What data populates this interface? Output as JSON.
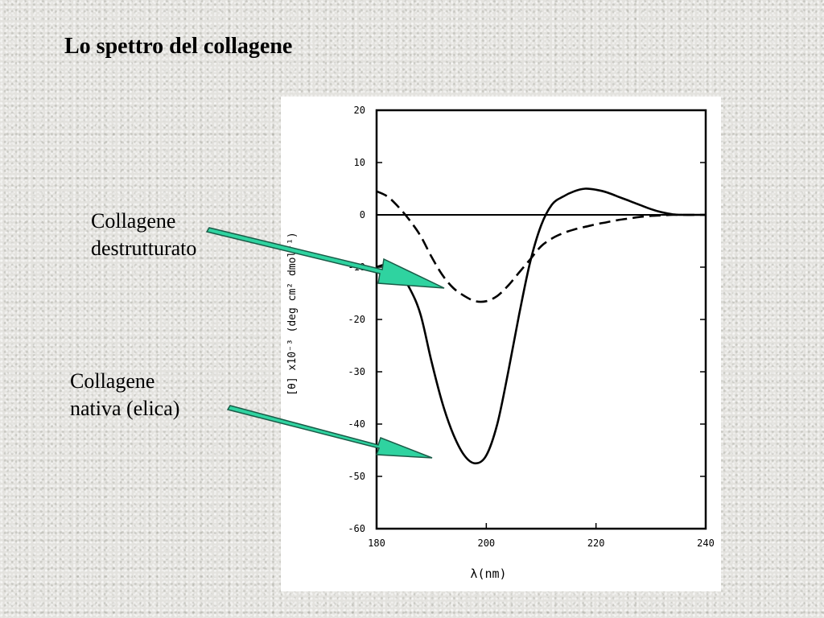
{
  "slide": {
    "title": "Lo spettro del collagene"
  },
  "callouts": {
    "destrutturato_line1": "Collagene",
    "destrutturato_line2": "destrutturato",
    "nativa_line1": "Collagene",
    "nativa_line2": "nativa (elica)"
  },
  "colors": {
    "arrow_fill": "#2fd3a0",
    "arrow_stroke": "#1a5c48",
    "chart_ink": "#000000",
    "panel": "#ffffff"
  },
  "chart_data": {
    "type": "line",
    "xlabel": "λ(nm)",
    "ylabel": "[θ] x10⁻³ (deg cm² dmol⁻¹)",
    "xlim": [
      180,
      240
    ],
    "ylim": [
      -60,
      20
    ],
    "x_ticks": [
      180,
      200,
      220,
      240
    ],
    "x_tick_labels": [
      "180",
      "200",
      "220",
      "240"
    ],
    "y_ticks": [
      20,
      10,
      0,
      -10,
      -20,
      -30,
      -40,
      -50,
      -60
    ],
    "y_tick_labels": [
      "20",
      "10",
      "0",
      "-10",
      "-20",
      "-30",
      "-40",
      "-50",
      "-60"
    ],
    "zero_line": true,
    "grid": false,
    "series": [
      {
        "style": "solid",
        "x": [
          180,
          182,
          184,
          186,
          188,
          190,
          192,
          194,
          196,
          198,
          200,
          202,
          204,
          206,
          208,
          210,
          212,
          214,
          216,
          218,
          220,
          222,
          224,
          226,
          228,
          230,
          232,
          234,
          236,
          238,
          240
        ],
        "y": [
          -10,
          -9.5,
          -11,
          -14,
          -19,
          -28,
          -36,
          -42,
          -46,
          -47.5,
          -46,
          -40,
          -30,
          -19,
          -9,
          -2,
          2,
          3.5,
          4.5,
          5,
          4.8,
          4.3,
          3.5,
          2.7,
          1.9,
          1.1,
          0.5,
          0.1,
          0,
          0,
          0
        ]
      },
      {
        "style": "dashed",
        "x": [
          180,
          182,
          184,
          186,
          188,
          190,
          192,
          194,
          196,
          198,
          200,
          202,
          204,
          206,
          208,
          210,
          212,
          214,
          216,
          218,
          220,
          222,
          224,
          226,
          228,
          230,
          232,
          234,
          236,
          238,
          240
        ],
        "y": [
          4.5,
          3.5,
          1.5,
          -1,
          -4,
          -8,
          -11.5,
          -14,
          -15.5,
          -16.5,
          -16.5,
          -15.5,
          -13.5,
          -11,
          -8.5,
          -6,
          -4.5,
          -3.5,
          -2.8,
          -2.3,
          -1.8,
          -1.4,
          -1,
          -0.7,
          -0.4,
          -0.2,
          -0.1,
          0,
          0,
          0,
          0
        ]
      }
    ]
  }
}
